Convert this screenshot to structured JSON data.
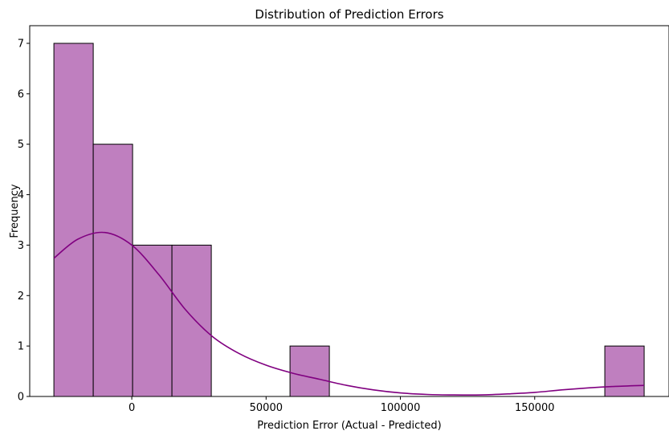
{
  "chart_data": {
    "type": "bar",
    "title": "Distribution of Prediction Errors",
    "xlabel": "Prediction Error (Actual - Predicted)",
    "ylabel": "Frequency",
    "bins": [
      {
        "x0": -29000,
        "x1": -14350,
        "count": 7
      },
      {
        "x0": -14350,
        "x1": 300,
        "count": 5
      },
      {
        "x0": 300,
        "x1": 14950,
        "count": 3
      },
      {
        "x0": 14950,
        "x1": 29600,
        "count": 3
      },
      {
        "x0": 29600,
        "x1": 44250,
        "count": 0
      },
      {
        "x0": 44250,
        "x1": 58900,
        "count": 0
      },
      {
        "x0": 58900,
        "x1": 73550,
        "count": 1
      },
      {
        "x0": 73550,
        "x1": 88200,
        "count": 0
      },
      {
        "x0": 88200,
        "x1": 102850,
        "count": 0
      },
      {
        "x0": 102850,
        "x1": 117500,
        "count": 0
      },
      {
        "x0": 117500,
        "x1": 132150,
        "count": 0
      },
      {
        "x0": 132150,
        "x1": 146800,
        "count": 0
      },
      {
        "x0": 146800,
        "x1": 161450,
        "count": 0
      },
      {
        "x0": 161450,
        "x1": 176100,
        "count": 0
      },
      {
        "x0": 176100,
        "x1": 190750,
        "count": 1
      }
    ],
    "kde": {
      "x": [
        -29000,
        -20000,
        -10000,
        0,
        10000,
        20000,
        30000,
        40000,
        50000,
        60000,
        70000,
        80000,
        90000,
        100000,
        110000,
        120000,
        130000,
        140000,
        150000,
        160000,
        170000,
        180000,
        190750
      ],
      "y": [
        2.74,
        3.12,
        3.25,
        3.0,
        2.42,
        1.72,
        1.19,
        0.85,
        0.62,
        0.46,
        0.34,
        0.22,
        0.13,
        0.07,
        0.04,
        0.03,
        0.03,
        0.05,
        0.08,
        0.13,
        0.17,
        0.2,
        0.22
      ]
    },
    "xlim": [
      -38000,
      200000
    ],
    "ylim": [
      0,
      7.35
    ],
    "xticks": [
      0,
      50000,
      100000,
      150000
    ],
    "xtick_labels": [
      "0",
      "50000",
      "100000",
      "150000"
    ],
    "yticks": [
      0,
      1,
      2,
      3,
      4,
      5,
      6,
      7
    ],
    "ytick_labels": [
      "0",
      "1",
      "2",
      "3",
      "4",
      "5",
      "6",
      "7"
    ],
    "bar_color": "#bf7fbf",
    "bar_edge_color": "#000000",
    "kde_color": "#800080",
    "grid": false,
    "legend": false
  }
}
